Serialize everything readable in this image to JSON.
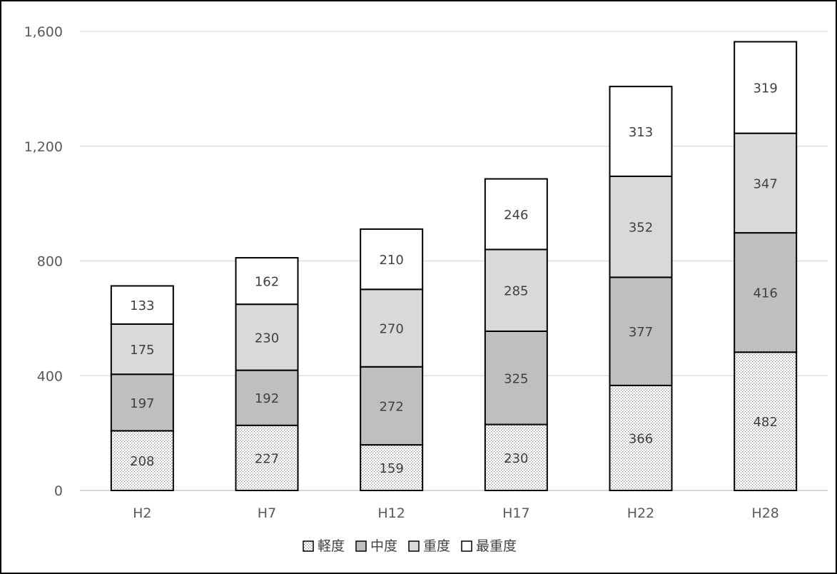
{
  "chart_data": {
    "type": "bar",
    "stacked": true,
    "categories": [
      "H2",
      "H7",
      "H12",
      "H17",
      "H22",
      "H28"
    ],
    "series": [
      {
        "name": "軽度",
        "values": [
          208,
          227,
          159,
          230,
          366,
          482
        ],
        "fill": "dots",
        "color": "#ffffff"
      },
      {
        "name": "中度",
        "values": [
          197,
          192,
          272,
          325,
          377,
          416
        ],
        "fill": "solid",
        "color": "#bfbfbf"
      },
      {
        "name": "重度",
        "values": [
          175,
          230,
          270,
          285,
          352,
          347
        ],
        "fill": "solid",
        "color": "#d9d9d9"
      },
      {
        "name": "最重度",
        "values": [
          133,
          162,
          210,
          246,
          313,
          319
        ],
        "fill": "solid",
        "color": "#ffffff"
      }
    ],
    "yticks": [
      "0",
      "400",
      "800",
      "1,200",
      "1,600"
    ],
    "ylim": [
      0,
      1600
    ],
    "grid": true,
    "legend": "bottom",
    "title": "",
    "xlabel": "",
    "ylabel": ""
  }
}
